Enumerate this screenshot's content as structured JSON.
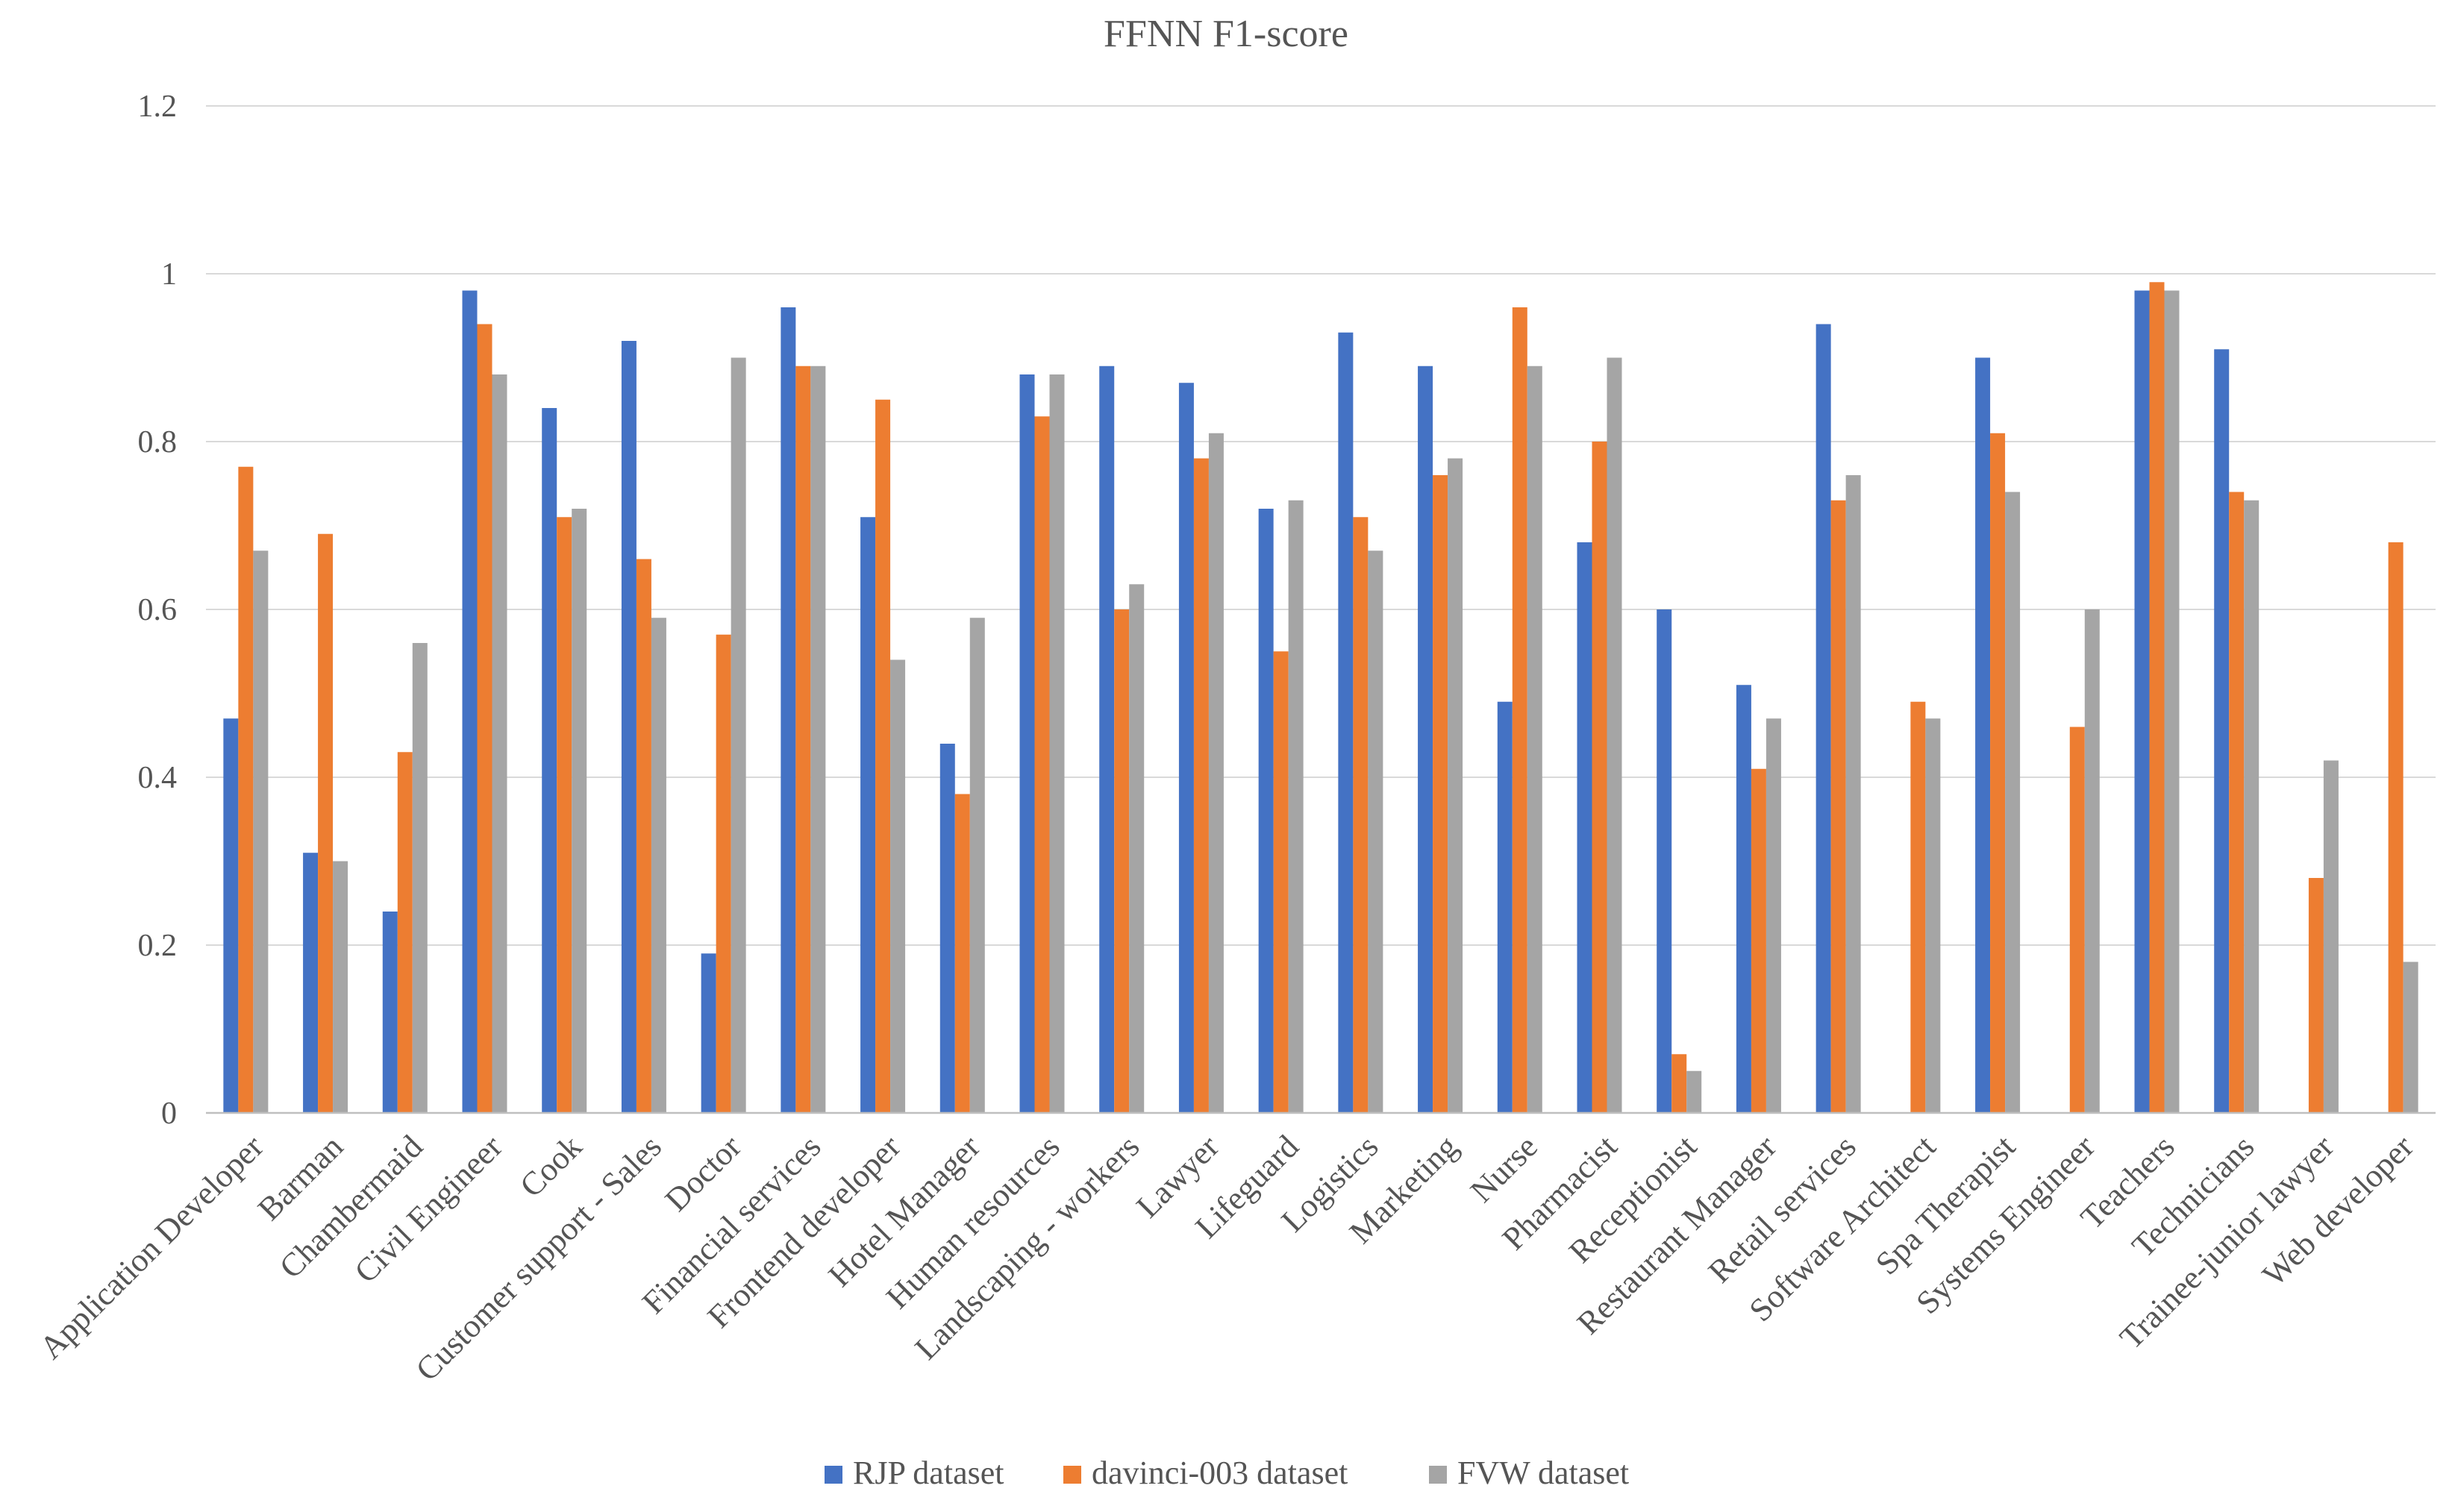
{
  "chart_data": {
    "type": "bar",
    "title": "FFNN F1-score",
    "xlabel": "",
    "ylabel": "",
    "ylim": [
      0,
      1.2
    ],
    "yticks": [
      0,
      0.2,
      0.4,
      0.6,
      0.8,
      1,
      1.2
    ],
    "ytick_labels": [
      "0",
      "0.2",
      "0.4",
      "0.6",
      "0.8",
      "1",
      "1.2"
    ],
    "grid": true,
    "legend_position": "bottom",
    "categories": [
      "Application Developer",
      "Barman",
      "Chambermaid",
      "Civil Engineer",
      "Cook",
      "Customer support - Sales",
      "Doctor",
      "Financial services",
      "Frontend developer",
      "Hotel Manager",
      "Human resources",
      "Landscaping - workers",
      "Lawyer",
      "Lifeguard",
      "Logistics",
      "Marketing",
      "Nurse",
      "Pharmacist",
      "Receptionist",
      "Restaurant Manager",
      "Retail services",
      "Software Architect",
      "Spa Therapist",
      "Systems Engineer",
      "Teachers",
      "Technicians",
      "Trainee-junior lawyer",
      "Web developer"
    ],
    "series": [
      {
        "name": "RJP dataset",
        "color": "#4472c4",
        "values": [
          0.47,
          0.31,
          0.24,
          0.98,
          0.84,
          0.92,
          0.19,
          0.96,
          0.71,
          0.44,
          0.88,
          0.89,
          0.87,
          0.72,
          0.93,
          0.89,
          0.49,
          0.68,
          0.6,
          0.51,
          0.94,
          0,
          0.9,
          0,
          0.98,
          0.91,
          0,
          0
        ]
      },
      {
        "name": "davinci-003 dataset",
        "color": "#ed7d31",
        "values": [
          0.77,
          0.69,
          0.43,
          0.94,
          0.71,
          0.66,
          0.57,
          0.89,
          0.85,
          0.38,
          0.83,
          0.6,
          0.78,
          0.55,
          0.71,
          0.76,
          0.96,
          0.8,
          0.07,
          0.41,
          0.73,
          0.49,
          0.81,
          0.46,
          0.99,
          0.74,
          0.28,
          0.68
        ]
      },
      {
        "name": "FVW dataset",
        "color": "#a5a5a5",
        "values": [
          0.67,
          0.3,
          0.56,
          0.88,
          0.72,
          0.59,
          0.9,
          0.89,
          0.54,
          0.59,
          0.88,
          0.63,
          0.81,
          0.73,
          0.67,
          0.78,
          0.89,
          0.9,
          0.05,
          0.47,
          0.76,
          0.47,
          0.74,
          0.6,
          0.98,
          0.73,
          0.42,
          0.18
        ]
      }
    ]
  }
}
